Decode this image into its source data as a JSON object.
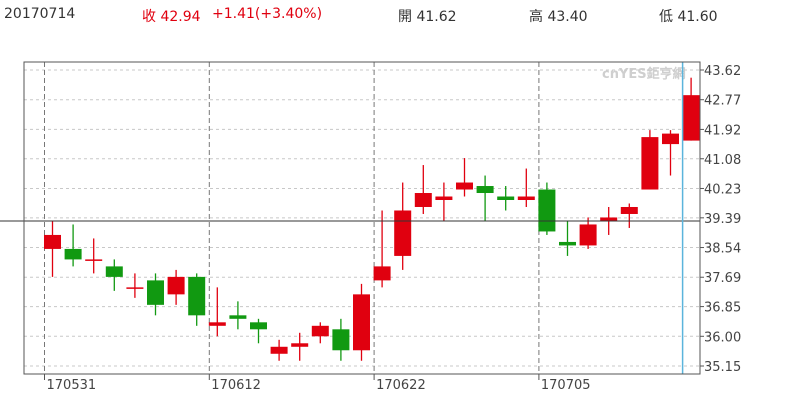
{
  "header": {
    "date": "20170714",
    "close_text": "收 42.94",
    "change_text": "+1.41(+3.40%)",
    "open_text": "開 41.62",
    "high_text": "高 43.40",
    "low_text": "低 41.60"
  },
  "watermark": "cnYES鉅亨網",
  "colors": {
    "up": "#e0000f",
    "down": "#119911",
    "current_line": "#5ab4dc",
    "ref_line": "#333333"
  },
  "chart_data": {
    "type": "candlestick",
    "ylim": [
      35.15,
      43.62
    ],
    "yticks": [
      "43.62",
      "42.77",
      "41.92",
      "41.08",
      "40.23",
      "39.39",
      "38.54",
      "37.69",
      "36.85",
      "36.00",
      "35.15"
    ],
    "reference_price": 39.3,
    "x_tick_labels": [
      {
        "label": "170531",
        "index": 0
      },
      {
        "label": "170612",
        "index": 8
      },
      {
        "label": "170622",
        "index": 16
      },
      {
        "label": "170705",
        "index": 24
      }
    ],
    "candles": [
      {
        "open": 38.5,
        "close": 38.9,
        "high": 39.3,
        "low": 37.7
      },
      {
        "open": 38.5,
        "close": 38.2,
        "high": 39.2,
        "low": 38.0
      },
      {
        "open": 38.2,
        "close": 38.2,
        "high": 38.8,
        "low": 37.8
      },
      {
        "open": 38.0,
        "close": 37.7,
        "high": 38.2,
        "low": 37.3
      },
      {
        "open": 37.4,
        "close": 37.4,
        "high": 37.8,
        "low": 37.1
      },
      {
        "open": 37.6,
        "close": 36.9,
        "high": 37.8,
        "low": 36.6
      },
      {
        "open": 37.2,
        "close": 37.7,
        "high": 37.9,
        "low": 36.9
      },
      {
        "open": 37.7,
        "close": 36.6,
        "high": 37.8,
        "low": 36.3
      },
      {
        "open": 36.3,
        "close": 36.4,
        "high": 37.4,
        "low": 36.0
      },
      {
        "open": 36.6,
        "close": 36.5,
        "high": 37.0,
        "low": 36.2
      },
      {
        "open": 36.4,
        "close": 36.2,
        "high": 36.5,
        "low": 35.8
      },
      {
        "open": 35.5,
        "close": 35.7,
        "high": 35.9,
        "low": 35.3
      },
      {
        "open": 35.7,
        "close": 35.8,
        "high": 36.1,
        "low": 35.3
      },
      {
        "open": 36.0,
        "close": 36.3,
        "high": 36.4,
        "low": 35.8
      },
      {
        "open": 36.2,
        "close": 35.6,
        "high": 36.5,
        "low": 35.3
      },
      {
        "open": 35.6,
        "close": 37.2,
        "high": 37.5,
        "low": 35.3
      },
      {
        "open": 37.6,
        "close": 38.0,
        "high": 39.6,
        "low": 37.4
      },
      {
        "open": 38.3,
        "close": 39.6,
        "high": 40.4,
        "low": 37.9
      },
      {
        "open": 39.7,
        "close": 40.1,
        "high": 40.9,
        "low": 39.5
      },
      {
        "open": 39.9,
        "close": 40.0,
        "high": 40.4,
        "low": 39.3
      },
      {
        "open": 40.2,
        "close": 40.4,
        "high": 41.1,
        "low": 40.0
      },
      {
        "open": 40.3,
        "close": 40.1,
        "high": 40.6,
        "low": 39.3
      },
      {
        "open": 40.0,
        "close": 39.9,
        "high": 40.3,
        "low": 39.6
      },
      {
        "open": 39.9,
        "close": 40.0,
        "high": 40.8,
        "low": 39.7
      },
      {
        "open": 40.2,
        "close": 39.0,
        "high": 40.4,
        "low": 38.9
      },
      {
        "open": 38.7,
        "close": 38.6,
        "high": 39.3,
        "low": 38.3
      },
      {
        "open": 38.6,
        "close": 39.2,
        "high": 39.4,
        "low": 38.5
      },
      {
        "open": 39.3,
        "close": 39.4,
        "high": 39.7,
        "low": 38.9
      },
      {
        "open": 39.5,
        "close": 39.7,
        "high": 39.8,
        "low": 39.1
      },
      {
        "open": 40.2,
        "close": 41.7,
        "high": 41.9,
        "low": 40.2
      },
      {
        "open": 41.5,
        "close": 41.8,
        "high": 41.9,
        "low": 40.6
      },
      {
        "open": 41.6,
        "close": 42.9,
        "high": 43.4,
        "low": 41.6
      }
    ]
  }
}
